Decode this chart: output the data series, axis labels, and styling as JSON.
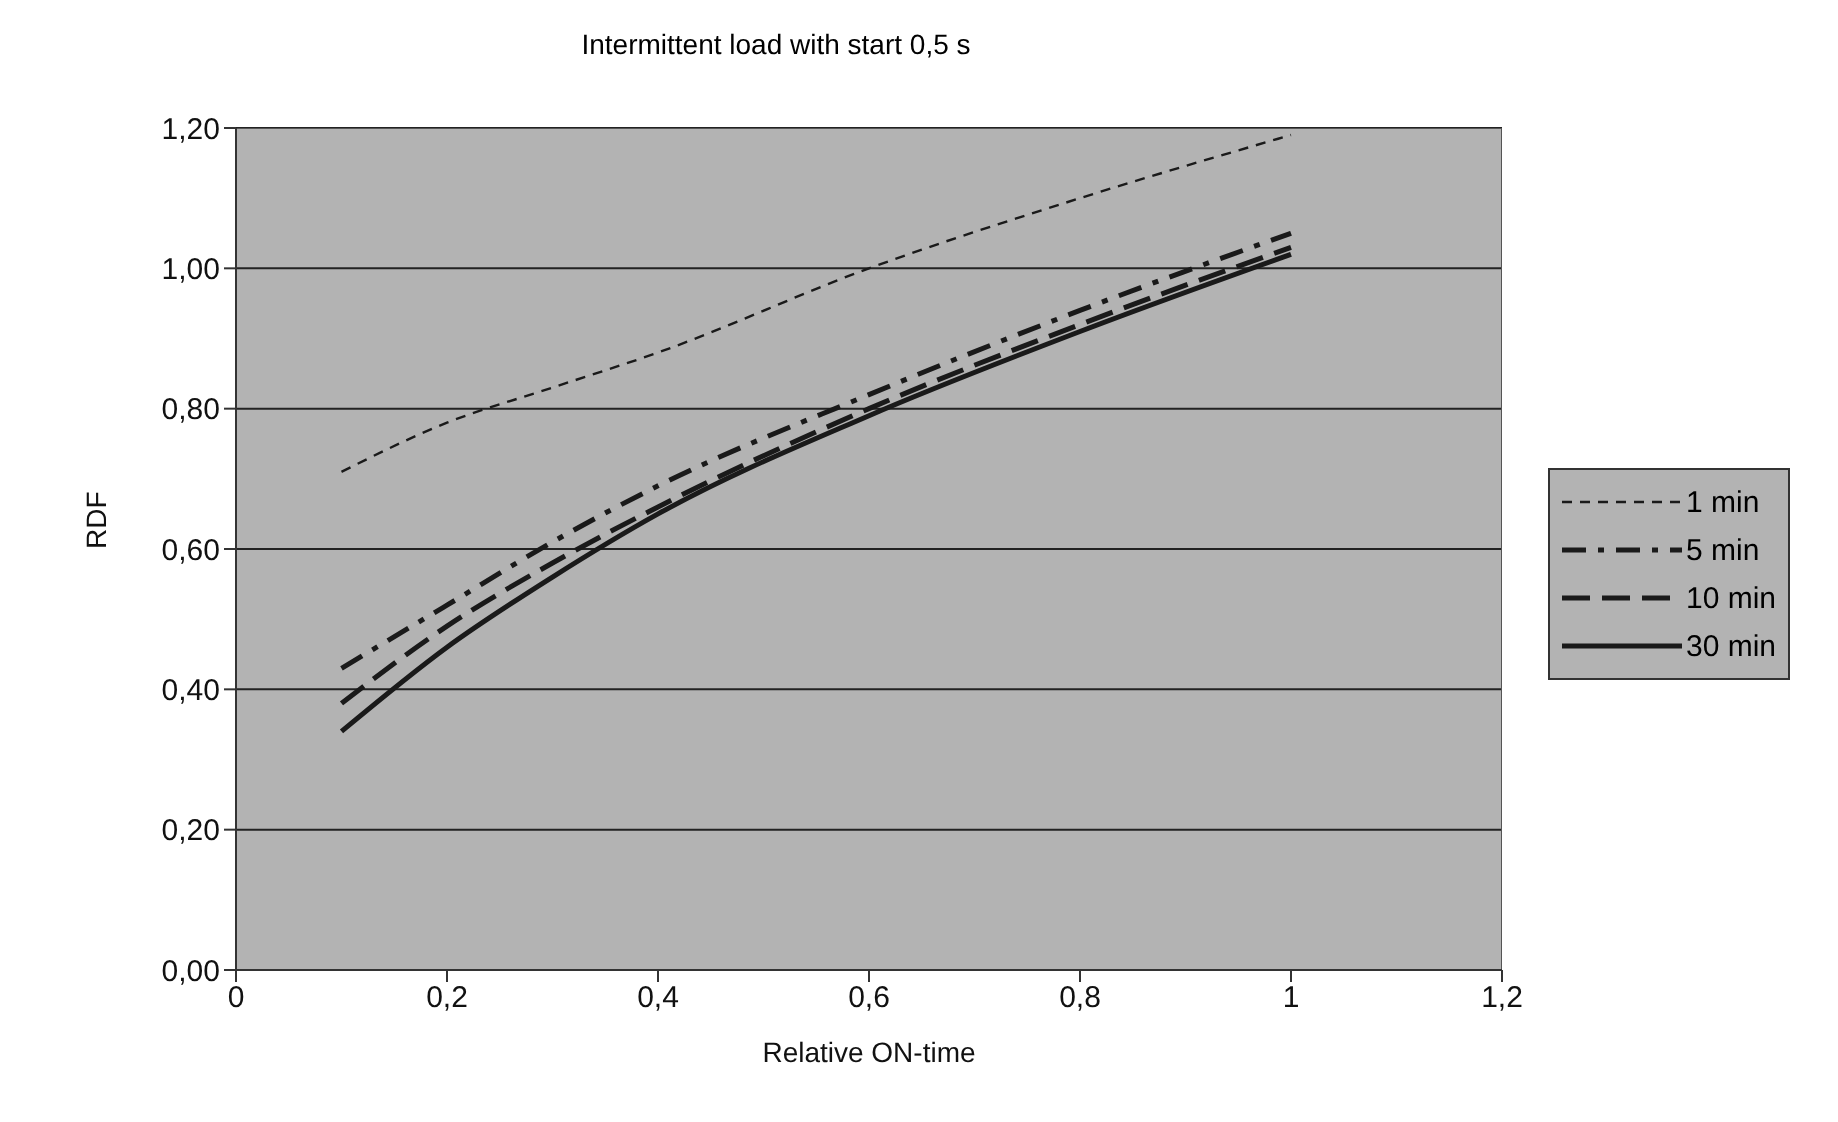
{
  "chart_data": {
    "type": "line",
    "title": "Intermittent load with start 0,5 s",
    "xlabel": "Relative ON-time",
    "ylabel": "RDF",
    "x": [
      0.1,
      0.2,
      0.3,
      0.4,
      0.6,
      0.8,
      1.0
    ],
    "series": [
      {
        "name": "1 min",
        "color": "#1a1a1a",
        "line_style": "dashed",
        "values": [
          0.71,
          0.78,
          0.83,
          0.88,
          1.0,
          1.1,
          1.19
        ]
      },
      {
        "name": "5 min",
        "color": "#1a1a1a",
        "line_style": "dashed",
        "values": [
          0.43,
          0.52,
          0.61,
          0.69,
          0.82,
          0.94,
          1.05
        ]
      },
      {
        "name": "10 min",
        "color": "#1a1a1a",
        "line_style": "dashed",
        "values": [
          0.38,
          0.49,
          0.58,
          0.66,
          0.8,
          0.92,
          1.03
        ]
      },
      {
        "name": "30 min",
        "color": "#1a1a1a",
        "line_style": "solid",
        "values": [
          0.34,
          0.46,
          0.56,
          0.65,
          0.79,
          0.91,
          1.02
        ]
      }
    ],
    "xlim": [
      0,
      1.2
    ],
    "xticks": [
      0,
      {
        "value": 0.2,
        "label": "0,2"
      },
      {
        "value": 0.4,
        "label": "0,4"
      },
      {
        "value": 0.6,
        "label": "0,6"
      },
      {
        "value": 0.8,
        "label": "0,8"
      },
      1,
      {
        "value": 1.2,
        "label": "1,2"
      }
    ],
    "ylim": [
      0,
      1.2
    ],
    "yticks": [
      {
        "value": 0,
        "label": "0,00"
      },
      {
        "value": 0.2,
        "label": "0,20"
      },
      {
        "value": 0.4,
        "label": "0,40"
      },
      {
        "value": 0.6,
        "label": "0,60"
      },
      {
        "value": 0.8,
        "label": "0,80"
      },
      {
        "value": 1.0,
        "label": "1,00"
      },
      {
        "value": 1.2,
        "label": "1,20"
      }
    ],
    "grid": "y",
    "legend": "right",
    "marker": "none"
  }
}
